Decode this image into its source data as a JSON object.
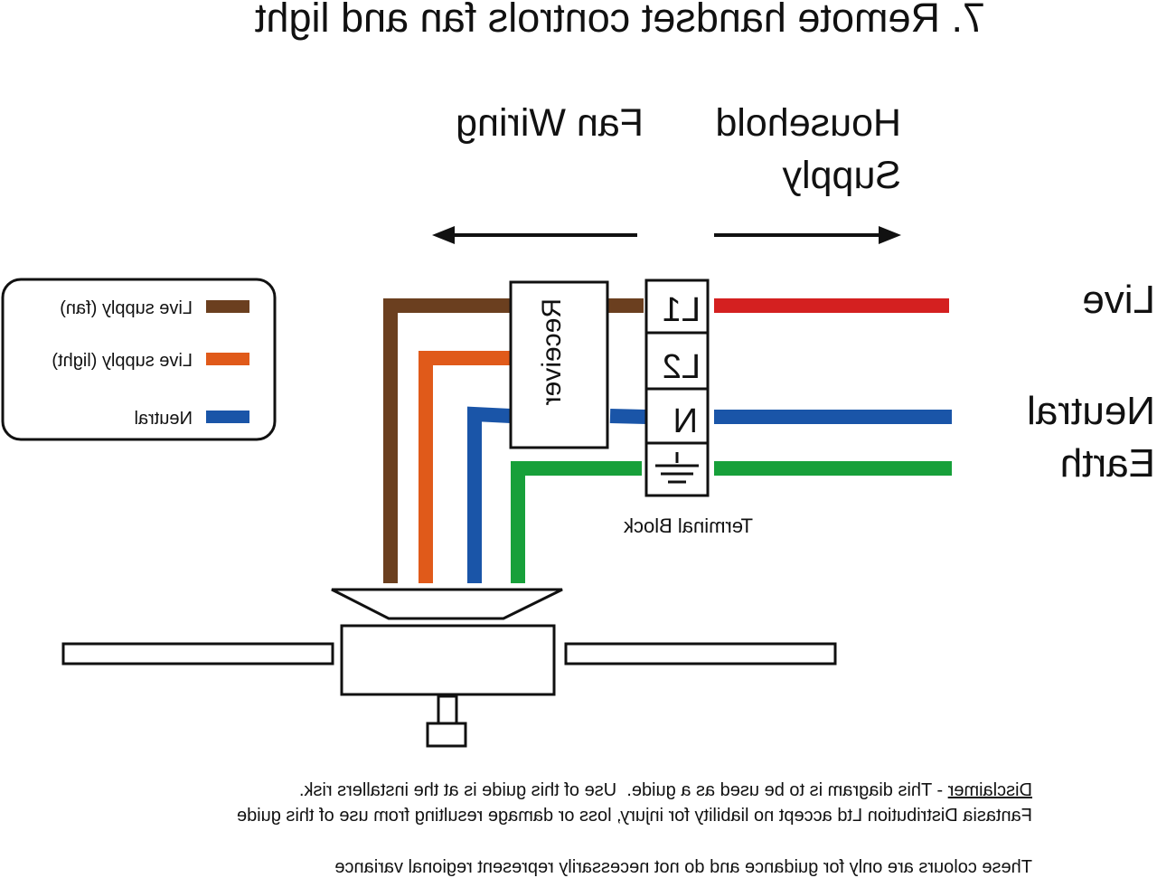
{
  "title": "7. Remote handset controls fan and light",
  "headings": {
    "fan_wiring": "Fan Wiring",
    "household_line1": "Household",
    "household_line2": "Supply"
  },
  "supply_labels": {
    "live": "Live",
    "neutral": "Neutral",
    "earth": "Earth"
  },
  "legend": [
    {
      "label": "Live supply (fan)",
      "color": "#6b3f1f"
    },
    {
      "label": "Live supply (light)",
      "color": "#e05a1a"
    },
    {
      "label": "Neutral",
      "color": "#1a55a8"
    }
  ],
  "wire_colors": {
    "live": "#d42020",
    "earth": "#17a03a"
  },
  "receiver": "Receiver",
  "terminal_block": {
    "label": "Terminal Block",
    "terminals": [
      "L1",
      "L2",
      "N"
    ],
    "earth_icon": "earth-ground-icon"
  },
  "disclaimer": {
    "heading": "Disclaimer",
    "line1": " - This diagram is to be used as a guide.  Use of this guide is at the installers risk.",
    "line2": "Fantasia Distribution Ltd accept no liability for injury, loss or damage resulting from use of this guide",
    "line3": "These colours are only for guidance and do not necessarily represent regional variance"
  },
  "mirrored": true
}
